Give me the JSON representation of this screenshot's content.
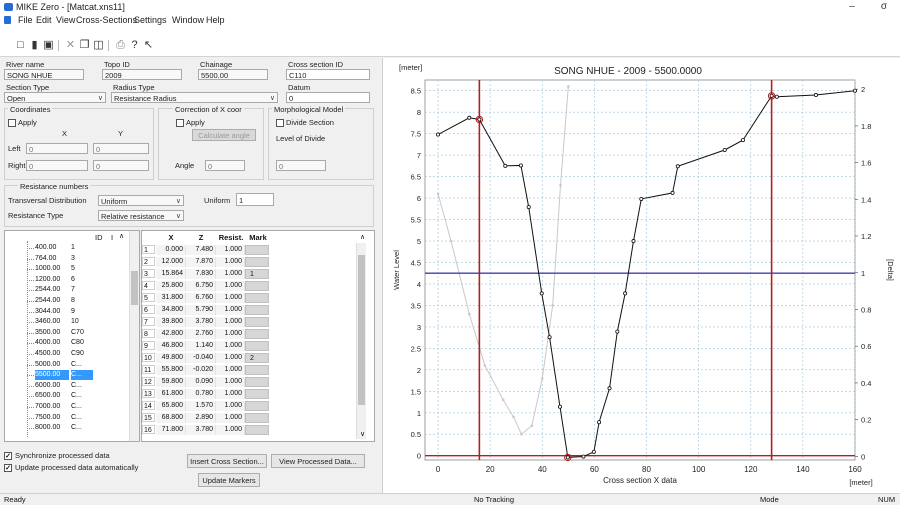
{
  "window": {
    "title": "MIKE Zero - [Matcat.xns11]",
    "minimize": "–",
    "maximize": "σ"
  },
  "menu": [
    "File",
    "Edit",
    "View",
    "Cross-Sections",
    "Settings",
    "Window",
    "Help"
  ],
  "form": {
    "river_name_label": "River name",
    "river_name": "SONG NHUE",
    "topo_label": "Topo ID",
    "topo": "2009",
    "chainage_label": "Chainage",
    "chainage": "5500.00",
    "cs_id_label": "Cross section ID",
    "cs_id": "C110",
    "section_type_label": "Section Type",
    "section_type": "Open",
    "radius_type_label": "Radius Type",
    "radius_type": "Resistance Radius",
    "datum_label": "Datum",
    "datum": "0",
    "coords_label": "Coordinates",
    "apply_label": "Apply",
    "x_label": "X",
    "y_label": "Y",
    "left_label": "Left",
    "left_x": "0",
    "left_y": "0",
    "right_label": "Right",
    "right_x": "0",
    "right_y": "0",
    "corr_label": "Correction of X coor",
    "corr_apply": "Apply",
    "calc_angle": "Calculate angle",
    "angle_label": "Angle",
    "angle": "0",
    "morph_label": "Morphological Model",
    "divide_label": "Divide Section",
    "level_divide_label": "Level of Divide",
    "level_divide": "0",
    "resist_numbers_label": "Resistance numbers",
    "trans_dist_label": "Transversal Distribution",
    "trans_dist": "Uniform",
    "uniform_label": "Uniform",
    "uniform": "1",
    "resist_type_label": "Resistance Type",
    "resist_type": "Relative resistance"
  },
  "tree": {
    "col_id": "ID",
    "col_i": "I",
    "rows": [
      {
        "v": "400.00",
        "i": "1"
      },
      {
        "v": "764.00",
        "i": "3"
      },
      {
        "v": "1000.00",
        "i": "5"
      },
      {
        "v": "1200.00",
        "i": "6"
      },
      {
        "v": "2544.00",
        "i": "7"
      },
      {
        "v": "2544.00",
        "i": "8"
      },
      {
        "v": "3044.00",
        "i": "9"
      },
      {
        "v": "3460.00",
        "i": "10"
      },
      {
        "v": "3500.00",
        "i": "C70"
      },
      {
        "v": "4000.00",
        "i": "C80"
      },
      {
        "v": "4500.00",
        "i": "C90"
      },
      {
        "v": "5000.00",
        "i": "C..."
      },
      {
        "v": "5500.00",
        "i": "C..."
      },
      {
        "v": "6000.00",
        "i": "C..."
      },
      {
        "v": "6500.00",
        "i": "C..."
      },
      {
        "v": "7000.00",
        "i": "C..."
      },
      {
        "v": "7500.00",
        "i": "C..."
      },
      {
        "v": "8000.00",
        "i": "C..."
      }
    ]
  },
  "grid": {
    "headers": [
      "X",
      "Z",
      "Resist.",
      "Mark"
    ],
    "rows": [
      {
        "n": "1",
        "x": "0.000",
        "z": "7.480",
        "r": "1.000",
        "m": ""
      },
      {
        "n": "2",
        "x": "12.000",
        "z": "7.870",
        "r": "1.000",
        "m": ""
      },
      {
        "n": "3",
        "x": "15.864",
        "z": "7.830",
        "r": "1.000",
        "m": "1"
      },
      {
        "n": "4",
        "x": "25.800",
        "z": "6.750",
        "r": "1.000",
        "m": ""
      },
      {
        "n": "5",
        "x": "31.800",
        "z": "6.760",
        "r": "1.000",
        "m": ""
      },
      {
        "n": "6",
        "x": "34.800",
        "z": "5.790",
        "r": "1.000",
        "m": ""
      },
      {
        "n": "7",
        "x": "39.800",
        "z": "3.780",
        "r": "1.000",
        "m": ""
      },
      {
        "n": "8",
        "x": "42.800",
        "z": "2.760",
        "r": "1.000",
        "m": ""
      },
      {
        "n": "9",
        "x": "46.800",
        "z": "1.140",
        "r": "1.000",
        "m": ""
      },
      {
        "n": "10",
        "x": "49.800",
        "z": "-0.040",
        "r": "1.000",
        "m": "2"
      },
      {
        "n": "11",
        "x": "55.800",
        "z": "-0.020",
        "r": "1.000",
        "m": ""
      },
      {
        "n": "12",
        "x": "59.800",
        "z": "0.090",
        "r": "1.000",
        "m": ""
      },
      {
        "n": "13",
        "x": "61.800",
        "z": "0.780",
        "r": "1.000",
        "m": ""
      },
      {
        "n": "14",
        "x": "65.800",
        "z": "1.570",
        "r": "1.000",
        "m": ""
      },
      {
        "n": "15",
        "x": "68.800",
        "z": "2.890",
        "r": "1.000",
        "m": ""
      },
      {
        "n": "16",
        "x": "71.800",
        "z": "3.780",
        "r": "1.000",
        "m": ""
      }
    ]
  },
  "options": {
    "sync": "Synchronize processed data",
    "update": "Update processed data automatically"
  },
  "buttons": {
    "insert": "Insert Cross Section...",
    "view": "View Processed Data...",
    "markers": "Update Markers"
  },
  "status": {
    "ready": "Ready",
    "tracking": "No Tracking",
    "mode": "Mode",
    "num": "NUM"
  },
  "chart_data": {
    "type": "line",
    "title": "SONG NHUE - 2009 - 5500.0000",
    "xlabel": "Cross section X data",
    "x_unit": "[meter]",
    "ylabel": "Water Level",
    "y_unit": "[meter]",
    "y2label": "[Delta]",
    "xlim": [
      -5,
      160
    ],
    "ylim": [
      -0.1,
      8.75
    ],
    "y2lim": [
      -0.02,
      2.05
    ],
    "xticks": [
      0,
      20,
      40,
      60,
      80,
      100,
      120,
      140,
      160
    ],
    "yticks": [
      0.0,
      0.5,
      1.0,
      1.5,
      2.0,
      2.5,
      3.0,
      3.5,
      4.0,
      4.5,
      5.0,
      5.5,
      6.0,
      6.5,
      7.0,
      7.5,
      8.0,
      8.5
    ],
    "y2ticks": [
      0.0,
      0.2,
      0.4,
      0.6,
      0.8,
      1.0,
      1.2,
      1.4,
      1.6,
      1.8,
      2.0
    ],
    "grid": true,
    "main_color": "#111111",
    "processed_color": "#c8c8c8",
    "water_level": 4.25,
    "water_color": "#3f3fb5",
    "marker_color": "#b02020",
    "marker_x": [
      15.864,
      128
    ],
    "bottom_marker_x": 49.8,
    "profile": {
      "x": [
        0,
        12,
        15.864,
        25.8,
        31.8,
        34.8,
        39.8,
        42.8,
        46.8,
        49.8,
        55.8,
        59.8,
        61.8,
        65.8,
        68.8,
        71.8,
        75,
        78,
        90,
        92,
        110,
        117,
        128,
        130,
        145,
        160
      ],
      "y": [
        7.48,
        7.87,
        7.83,
        6.75,
        6.76,
        5.79,
        3.78,
        2.76,
        1.14,
        -0.04,
        -0.02,
        0.09,
        0.78,
        1.57,
        2.89,
        3.78,
        5.0,
        5.98,
        6.12,
        6.74,
        7.12,
        7.35,
        8.38,
        8.36,
        8.4,
        8.5
      ]
    },
    "processed": {
      "x": [
        0,
        5,
        12,
        18,
        25,
        29,
        32,
        36,
        40,
        44,
        47,
        50
      ],
      "y": [
        6.1,
        5.0,
        3.3,
        2.1,
        1.3,
        0.9,
        0.5,
        0.7,
        1.8,
        3.5,
        6.3,
        8.6
      ]
    }
  }
}
